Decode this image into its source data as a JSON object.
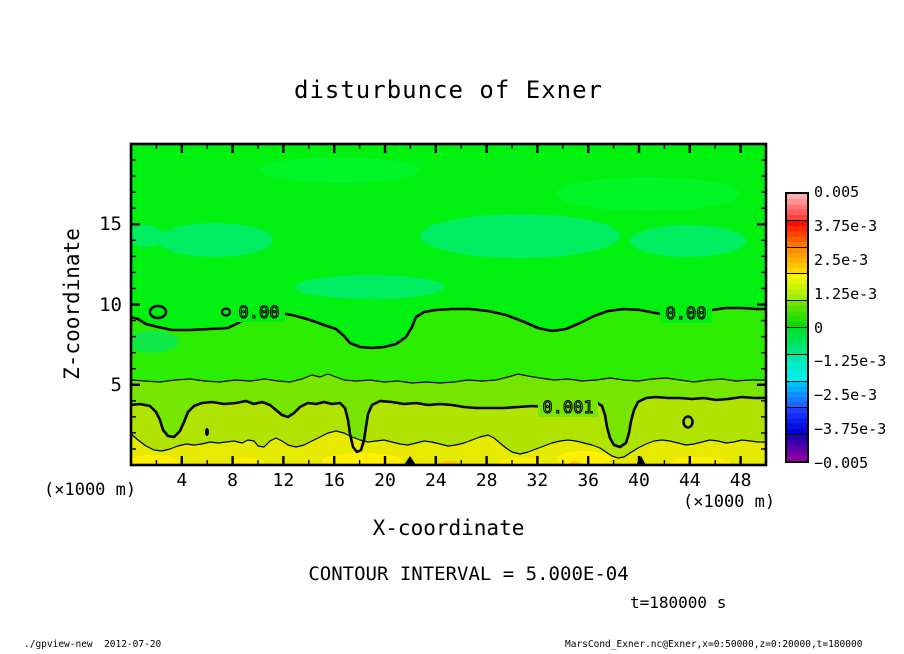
{
  "title": "disturbunce of Exner",
  "annotations": {
    "contour_interval": "CONTOUR INTERVAL = 5.000E-04",
    "time": "t=180000 s"
  },
  "footer": {
    "left": "./gpview-new  2012-07-20",
    "right": "MarsCond_Exner.nc@Exner,x=0:50000,z=0:20000,t=180000"
  },
  "axes": {
    "x": {
      "label": "X-coordinate",
      "units": "(×1000 m)",
      "range": [
        0,
        50
      ],
      "major_ticks": [
        4,
        8,
        12,
        16,
        20,
        24,
        28,
        32,
        36,
        40,
        44,
        48
      ],
      "minor_ticks": [
        2,
        6,
        10,
        14,
        18,
        22,
        26,
        30,
        34,
        38,
        42,
        46,
        50
      ]
    },
    "y": {
      "label": "Z-coordinate",
      "units": "(×1000 m)",
      "range": [
        0,
        20
      ],
      "major_ticks": [
        5,
        10,
        15
      ],
      "minor_ticks": [
        1,
        2,
        3,
        4,
        6,
        7,
        8,
        9,
        11,
        12,
        13,
        14,
        16,
        17,
        18,
        19
      ]
    }
  },
  "colorbar": {
    "labels": [
      "0.005",
      "3.75e-3",
      "2.5e-3",
      "1.25e-3",
      "0",
      "−1.25e-3",
      "−2.5e-3",
      "−3.75e-3",
      "−0.005"
    ],
    "blocks": [
      [
        "#ffacac",
        "#ff4242"
      ],
      [
        "#f81000",
        "#ff7400"
      ],
      [
        "#ff8c00",
        "#ffd400"
      ],
      [
        "#f8f800",
        "#9cee00"
      ],
      [
        "#6ae400",
        "#0cdc00"
      ],
      [
        "#00e030",
        "#00e682"
      ],
      [
        "#00eaae",
        "#00f0f0"
      ],
      [
        "#00c0f8",
        "#2062ff"
      ],
      [
        "#1c3cff",
        "#0000d4"
      ],
      [
        "#2400b4",
        "#8e00a2"
      ]
    ]
  },
  "plot": {
    "contour_labels": [
      "0.00",
      "0.00",
      "0.001"
    ],
    "colors": {
      "base_green": "#00f00f",
      "teal_patch": "#00ee62",
      "light_patch": "#00f830",
      "band_0_to_5e4": "#2cec00",
      "band_5e4_to_1e3": "#76e600",
      "band_1e3_to_15e3": "#b0e400",
      "band_gt_15e3": "#e6ea00",
      "bright_yellow_patch": "#fff000",
      "orange_spot": "#ffc000",
      "contour_line": "#000000"
    }
  },
  "chart_data": {
    "type": "filled-contour",
    "title": "disturbunce of Exner",
    "xlabel": "X-coordinate (×1000 m)",
    "ylabel": "Z-coordinate (×1000 m)",
    "xlim": [
      0,
      50
    ],
    "ylim": [
      0,
      20
    ],
    "grid": false,
    "legend_position": "right-colorbar",
    "contour_interval": 0.0005,
    "time_seconds": 180000,
    "colorbar_levels": [
      0.005,
      0.00375,
      0.0025,
      0.00125,
      0,
      -0.00125,
      -0.0025,
      -0.00375,
      -0.005
    ],
    "contours": [
      {
        "level": 0.0,
        "style": "thick",
        "label": "0.00",
        "approx_mean_z": 9.5
      },
      {
        "level": 0.0005,
        "style": "thin",
        "label": null,
        "approx_mean_z": 5.3
      },
      {
        "level": 0.001,
        "style": "thick",
        "label": "0.001",
        "approx_mean_z": 3.6
      },
      {
        "level": 0.0015,
        "style": "thin",
        "label": null,
        "approx_mean_z": 1.3
      }
    ],
    "field_description": "Exner-function disturbance near zero aloft (green, with weak negative teal patches near z≈13-15), increasing monotonically toward the surface to values above 1.5e-3 (yellow band at z<1.5); contour lines undulate with small folds near x≈13, x≈27 and x≈48."
  }
}
